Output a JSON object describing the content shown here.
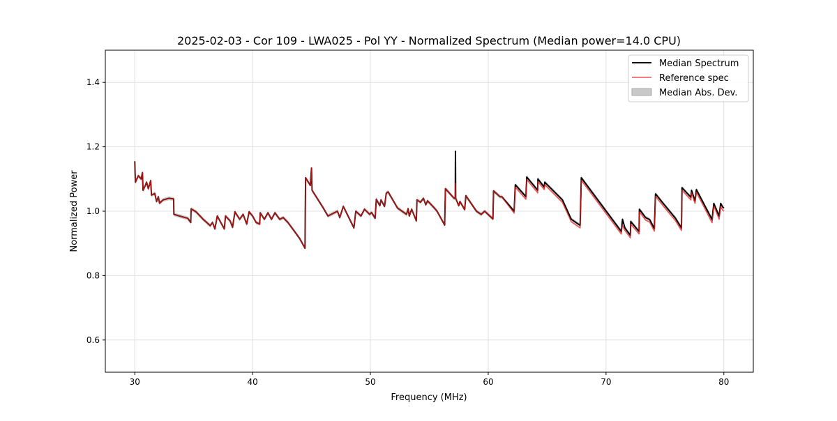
{
  "chart_data": {
    "type": "line",
    "title": "2025-02-03 - Cor 109 - LWA025 - Pol YY - Normalized Spectrum (Median power=14.0 CPU)",
    "xlabel": "Frequency (MHz)",
    "ylabel": "Normalized Power",
    "xlim": [
      27.5,
      82.5
    ],
    "ylim": [
      0.5,
      1.5
    ],
    "xticks": [
      30,
      40,
      50,
      60,
      70,
      80
    ],
    "yticks": [
      0.6,
      0.8,
      1.0,
      1.2,
      1.4
    ],
    "ytick_labels": [
      "0.6",
      "0.8",
      "1.0",
      "1.2",
      "1.4"
    ],
    "grid": true,
    "legend_position": "top-right",
    "legend": [
      "Median Spectrum",
      "Reference spec",
      "Median Abs. Dev."
    ],
    "colors": {
      "median": "#000000",
      "reference": "#e8191a",
      "mad": "#b0b0b0"
    },
    "mad_halfwidth": 0.006,
    "x": [
      30.0,
      30.05,
      30.3,
      30.55,
      30.65,
      30.7,
      30.9,
      31.0,
      31.15,
      31.35,
      31.42,
      31.7,
      31.85,
      32.0,
      32.1,
      32.4,
      32.9,
      33.3,
      33.32,
      33.8,
      34.5,
      34.75,
      34.78,
      35.2,
      35.8,
      36.2,
      36.4,
      36.6,
      36.8,
      37.0,
      37.3,
      37.6,
      37.7,
      38.1,
      38.3,
      38.5,
      38.9,
      39.2,
      39.5,
      39.7,
      40.0,
      40.3,
      40.6,
      40.65,
      41.0,
      41.3,
      41.6,
      41.9,
      42.3,
      42.6,
      43.0,
      43.5,
      44.0,
      44.45,
      44.5,
      44.9,
      45.0,
      45.05,
      46.0,
      46.4,
      47.2,
      47.4,
      47.7,
      48.6,
      48.76,
      49.2,
      49.5,
      49.94,
      50.1,
      50.4,
      50.5,
      50.8,
      50.9,
      51.2,
      51.35,
      51.5,
      52.3,
      53.07,
      53.2,
      53.3,
      53.5,
      53.9,
      53.95,
      54.25,
      54.5,
      54.7,
      54.85,
      55.4,
      55.66,
      56.3,
      56.37,
      57.1,
      57.2,
      57.22,
      57.24,
      57.5,
      57.6,
      58.0,
      58.1,
      59.0,
      59.4,
      59.7,
      60.4,
      60.45,
      61.0,
      61.15,
      62.2,
      62.3,
      63.2,
      63.27,
      64.2,
      64.22,
      64.75,
      64.8,
      66.3,
      67.05,
      67.8,
      67.9,
      71.3,
      71.36,
      71.4,
      71.6,
      72.06,
      72.1,
      72.8,
      72.83,
      73.36,
      73.7,
      74.1,
      74.2,
      74.9,
      75.9,
      76.4,
      76.45,
      77.2,
      77.26,
      77.55,
      77.67,
      79.0,
      79.15,
      79.6,
      79.73,
      79.9,
      80.0
    ],
    "series": [
      {
        "name": "Median Spectrum",
        "values": [
          1.155,
          1.09,
          1.11,
          1.1,
          1.12,
          1.065,
          1.08,
          1.09,
          1.07,
          1.095,
          1.05,
          1.055,
          1.03,
          1.045,
          1.025,
          1.035,
          1.04,
          1.038,
          0.99,
          0.985,
          0.978,
          0.965,
          1.007,
          0.998,
          0.975,
          0.962,
          0.955,
          0.965,
          0.945,
          0.985,
          0.965,
          0.945,
          0.985,
          0.97,
          0.95,
          0.998,
          0.975,
          0.99,
          0.96,
          0.998,
          0.985,
          0.965,
          0.96,
          0.995,
          0.975,
          0.995,
          0.975,
          0.995,
          0.975,
          0.98,
          0.965,
          0.94,
          0.915,
          0.885,
          1.104,
          1.08,
          1.134,
          1.065,
          1.01,
          0.985,
          1.0,
          0.98,
          1.015,
          0.948,
          1.0,
          0.985,
          1.006,
          0.99,
          0.996,
          0.978,
          1.037,
          1.017,
          1.035,
          1.015,
          1.056,
          1.06,
          1.01,
          0.99,
          1.008,
          0.985,
          1.006,
          0.97,
          1.035,
          1.028,
          1.04,
          1.02,
          1.032,
          1.011,
          1.0,
          0.957,
          1.07,
          1.04,
          1.04,
          1.186,
          1.04,
          1.017,
          1.03,
          1.005,
          1.048,
          1.0,
          0.99,
          1.0,
          0.976,
          1.063,
          1.045,
          1.045,
          1.0,
          1.082,
          1.045,
          1.106,
          1.065,
          1.1,
          1.075,
          1.09,
          1.035,
          0.975,
          0.956,
          1.104,
          0.937,
          0.96,
          0.975,
          0.948,
          0.925,
          0.968,
          0.937,
          1.006,
          0.98,
          0.974,
          0.946,
          1.054,
          1.022,
          0.978,
          0.948,
          1.073,
          1.043,
          1.065,
          1.032,
          1.067,
          0.974,
          1.024,
          0.985,
          1.024,
          1.013,
          1.01
        ]
      },
      {
        "name": "Reference spec",
        "values": [
          1.155,
          1.09,
          1.11,
          1.1,
          1.12,
          1.065,
          1.08,
          1.09,
          1.07,
          1.095,
          1.05,
          1.055,
          1.03,
          1.045,
          1.025,
          1.035,
          1.04,
          1.038,
          0.99,
          0.985,
          0.978,
          0.965,
          1.007,
          0.998,
          0.975,
          0.962,
          0.955,
          0.965,
          0.945,
          0.985,
          0.965,
          0.945,
          0.985,
          0.97,
          0.95,
          0.998,
          0.975,
          0.99,
          0.96,
          0.998,
          0.985,
          0.965,
          0.96,
          0.995,
          0.975,
          0.995,
          0.975,
          0.995,
          0.975,
          0.98,
          0.965,
          0.94,
          0.915,
          0.885,
          1.104,
          1.08,
          1.134,
          1.065,
          1.01,
          0.985,
          1.0,
          0.98,
          1.015,
          0.948,
          1.0,
          0.985,
          1.006,
          0.99,
          0.996,
          0.978,
          1.037,
          1.017,
          1.035,
          1.015,
          1.056,
          1.06,
          1.01,
          0.99,
          1.008,
          0.985,
          1.006,
          0.97,
          1.035,
          1.028,
          1.04,
          1.02,
          1.032,
          1.011,
          1.0,
          0.957,
          1.07,
          1.04,
          1.04,
          1.087,
          1.04,
          1.017,
          1.03,
          1.005,
          1.048,
          1.0,
          0.99,
          1.0,
          0.976,
          1.063,
          1.045,
          1.045,
          0.994,
          1.074,
          1.037,
          1.098,
          1.057,
          1.092,
          1.067,
          1.082,
          1.027,
          0.967,
          0.948,
          1.096,
          0.929,
          0.952,
          0.955,
          0.94,
          0.917,
          0.96,
          0.929,
          0.998,
          0.972,
          0.966,
          0.938,
          1.046,
          1.014,
          0.97,
          0.94,
          1.065,
          1.035,
          1.057,
          1.024,
          1.059,
          0.964,
          1.016,
          0.975,
          1.014,
          1.003,
          1.0
        ]
      }
    ]
  }
}
